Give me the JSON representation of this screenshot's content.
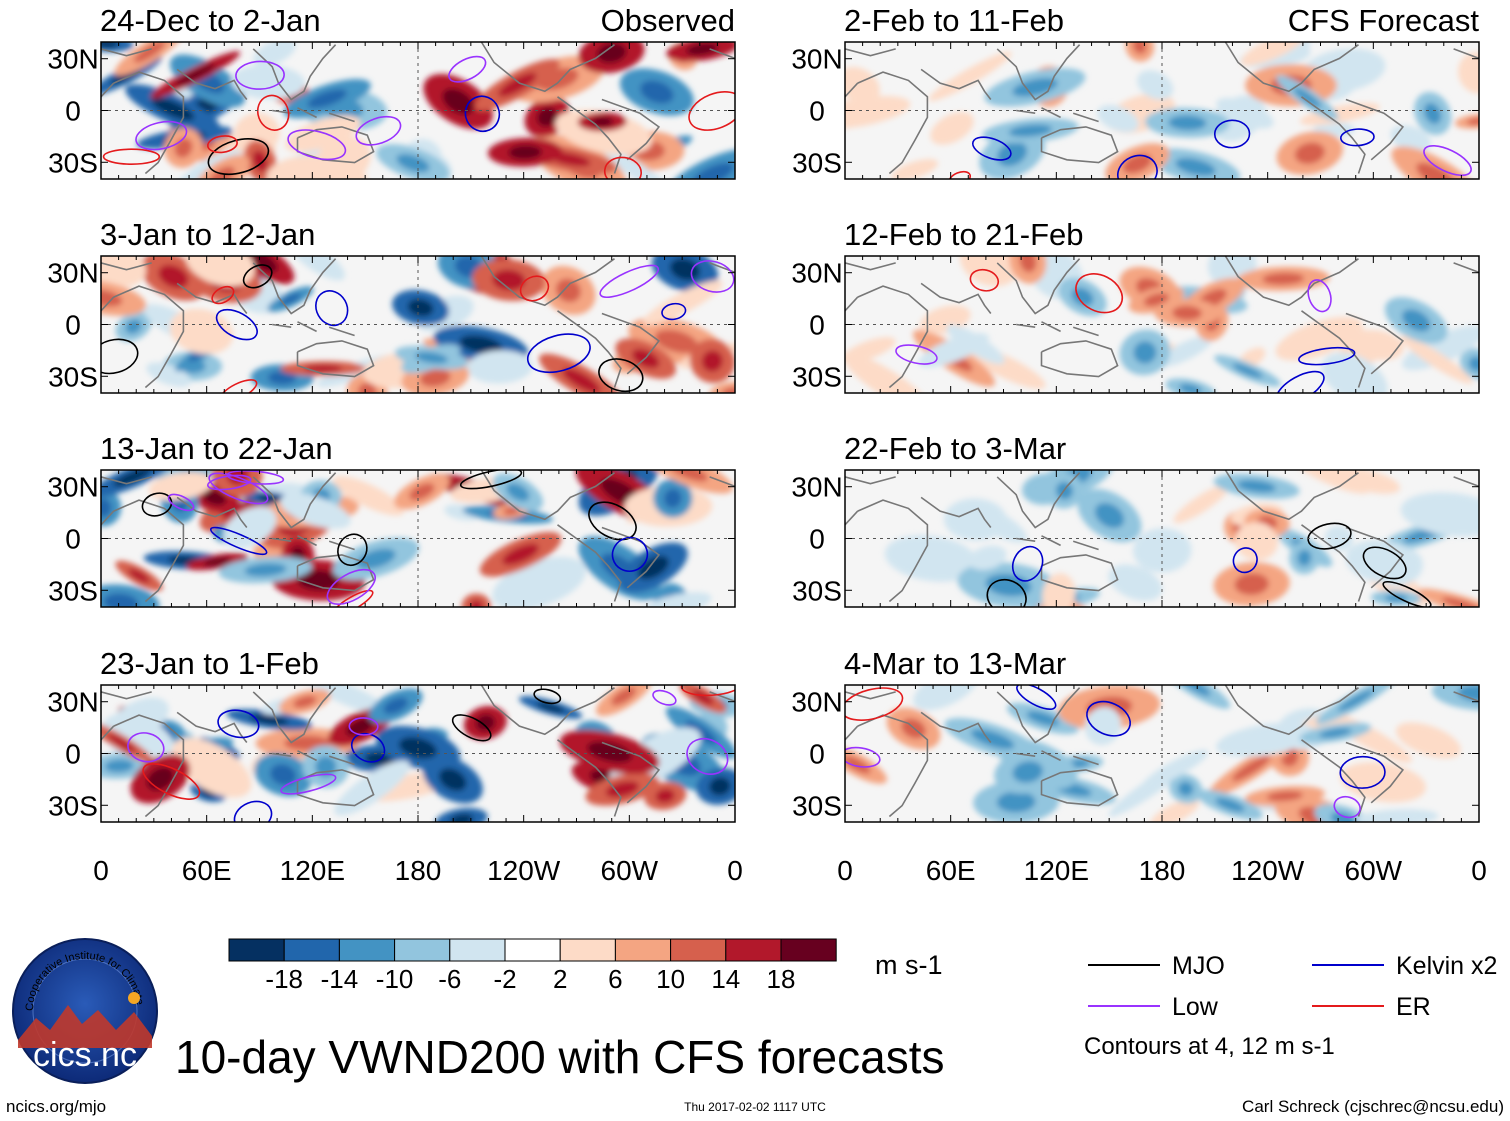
{
  "chart_data": {
    "type": "heatmap",
    "title": "10-day VWND200 with CFS forecasts",
    "variable": "VWND200",
    "units": "m s-1",
    "x_ticks": [
      "0",
      "60E",
      "120E",
      "180",
      "120W",
      "60W",
      "0"
    ],
    "y_ticks": [
      "30N",
      "0",
      "30S"
    ],
    "columns": [
      {
        "label": "Observed",
        "panels": [
          {
            "period": "24-Dec to 2-Jan"
          },
          {
            "period": "3-Jan to 12-Jan"
          },
          {
            "period": "13-Jan to 22-Jan"
          },
          {
            "period": "23-Jan to 1-Feb"
          }
        ]
      },
      {
        "label": "CFS Forecast",
        "panels": [
          {
            "period": "2-Feb to 11-Feb"
          },
          {
            "period": "12-Feb to 21-Feb"
          },
          {
            "period": "22-Feb to 3-Mar"
          },
          {
            "period": "4-Mar to 13-Mar"
          }
        ]
      }
    ],
    "colorbar": {
      "labels": [
        "-18",
        "-14",
        "-10",
        "-6",
        "-2",
        "2",
        "6",
        "10",
        "14",
        "18"
      ],
      "colors": [
        "#053061",
        "#2166ac",
        "#4393c3",
        "#92c5de",
        "#d1e5f0",
        "#ffffff",
        "#fddbc7",
        "#f4a582",
        "#d6604d",
        "#b2182b",
        "#67001f"
      ]
    },
    "legend": [
      {
        "name": "MJO",
        "color": "#000000"
      },
      {
        "name": "Kelvin x2",
        "color": "#0000cc"
      },
      {
        "name": "Low",
        "color": "#9933ff"
      },
      {
        "name": "ER",
        "color": "#e41a1c"
      }
    ],
    "contour_note": "Contours at 4, 12 m s-1"
  },
  "logo": {
    "name": "cicsnc-logo",
    "wordmark": "cics.nc",
    "ring_text": "Cooperative Institute for Climate and Satellites"
  },
  "footer": {
    "website": "ncics.org/mjo",
    "timestamp": "Thu 2017-02-02 1117 UTC",
    "author": "Carl Schreck (cjschrec@ncsu.edu)"
  }
}
